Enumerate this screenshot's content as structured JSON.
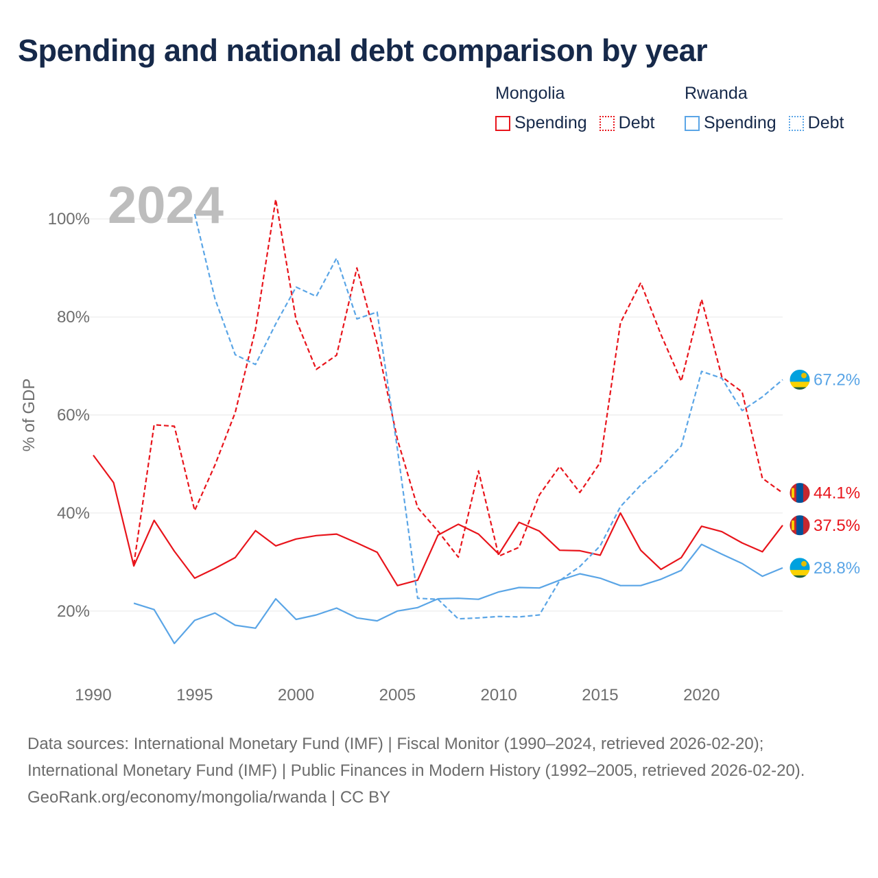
{
  "title": "Spending and national debt comparison by year",
  "year_watermark": "2024",
  "legend": {
    "mongolia": {
      "country": "Mongolia",
      "spending": "Spending",
      "debt": "Debt"
    },
    "rwanda": {
      "country": "Rwanda",
      "spending": "Spending",
      "debt": "Debt"
    }
  },
  "colors": {
    "mongolia": "#e8141b",
    "rwanda": "#5aa5e6",
    "grid": "#e6e6e6",
    "axis_text": "#6e6e6e"
  },
  "footer": {
    "sources": "Data sources: International Monetary Fund (IMF) | Fiscal Monitor (1990–2024, retrieved 2026-02-20); International Monetary Fund (IMF) | Public Finances in Modern History (1992–2005, retrieved 2026-02-20).",
    "credit": "GeoRank.org/economy/mongolia/rwanda | CC BY"
  },
  "chart_data": {
    "type": "line",
    "title": "Spending and national debt comparison by year",
    "xlabel": "",
    "ylabel": "% of GDP",
    "xlim": [
      1990,
      2024
    ],
    "ylim": [
      5,
      108
    ],
    "x_ticks": [
      1990,
      1995,
      2000,
      2005,
      2010,
      2015,
      2020
    ],
    "y_ticks": [
      20,
      40,
      60,
      80,
      100
    ],
    "y_tick_labels": [
      "20%",
      "40%",
      "60%",
      "80%",
      "100%"
    ],
    "series": [
      {
        "name": "Mongolia Spending",
        "country": "mongolia",
        "style": "solid",
        "x": [
          1990,
          1991,
          1992,
          1993,
          1994,
          1995,
          1996,
          1997,
          1998,
          1999,
          2000,
          2001,
          2002,
          2003,
          2004,
          2005,
          2006,
          2007,
          2008,
          2009,
          2010,
          2011,
          2012,
          2013,
          2014,
          2015,
          2016,
          2017,
          2018,
          2019,
          2020,
          2021,
          2022,
          2023,
          2024
        ],
        "values": [
          51.8,
          46.2,
          29.2,
          38.5,
          32.2,
          26.7,
          28.7,
          30.9,
          36.4,
          33.3,
          34.7,
          35.4,
          35.7,
          33.9,
          32.0,
          25.2,
          26.3,
          35.5,
          37.7,
          35.7,
          31.6,
          38.1,
          36.3,
          32.4,
          32.3,
          31.4,
          40.0,
          32.4,
          28.5,
          30.9,
          37.3,
          36.2,
          33.9,
          32.1,
          37.5
        ],
        "end_label": "37.5%"
      },
      {
        "name": "Mongolia Debt",
        "country": "mongolia",
        "style": "dashed",
        "x": [
          1992,
          1993,
          1994,
          1995,
          1996,
          1997,
          1998,
          1999,
          2000,
          2001,
          2002,
          2003,
          2004,
          2005,
          2006,
          2007,
          2008,
          2009,
          2010,
          2011,
          2012,
          2013,
          2014,
          2015,
          2016,
          2017,
          2018,
          2019,
          2020,
          2021,
          2022,
          2023,
          2024
        ],
        "values": [
          29.5,
          58.0,
          57.7,
          40.5,
          49.8,
          60.5,
          77.5,
          104.0,
          79.4,
          69.3,
          72.2,
          90.0,
          74.5,
          55.0,
          41.1,
          36.3,
          31.0,
          48.6,
          31.2,
          33.0,
          43.7,
          49.5,
          44.2,
          50.3,
          78.8,
          87.0,
          76.4,
          66.9,
          83.6,
          67.8,
          64.7,
          47.1,
          44.1
        ],
        "end_label": "44.1%"
      },
      {
        "name": "Rwanda Spending",
        "country": "rwanda",
        "style": "solid",
        "x": [
          1992,
          1993,
          1994,
          1995,
          1996,
          1997,
          1998,
          1999,
          2000,
          2001,
          2002,
          2003,
          2004,
          2005,
          2006,
          2007,
          2008,
          2009,
          2010,
          2011,
          2012,
          2013,
          2014,
          2015,
          2016,
          2017,
          2018,
          2019,
          2020,
          2021,
          2022,
          2023,
          2024
        ],
        "values": [
          21.6,
          20.3,
          13.4,
          18.1,
          19.6,
          17.1,
          16.5,
          22.5,
          18.3,
          19.2,
          20.6,
          18.6,
          18.0,
          20.0,
          20.7,
          22.5,
          22.6,
          22.4,
          23.9,
          24.8,
          24.7,
          26.3,
          27.6,
          26.7,
          25.2,
          25.2,
          26.5,
          28.3,
          33.6,
          31.6,
          29.7,
          27.1,
          28.8
        ],
        "end_label": "28.8%"
      },
      {
        "name": "Rwanda Debt",
        "country": "rwanda",
        "style": "dashed",
        "x": [
          1995,
          1996,
          1997,
          1998,
          1999,
          2000,
          2001,
          2002,
          2003,
          2004,
          2005,
          2006,
          2007,
          2008,
          2009,
          2010,
          2011,
          2012,
          2013,
          2014,
          2015,
          2016,
          2017,
          2018,
          2019,
          2020,
          2021,
          2022,
          2023,
          2024
        ],
        "values": [
          101.0,
          83.7,
          72.3,
          70.3,
          78.6,
          86.1,
          84.2,
          92.0,
          79.6,
          81.0,
          53.0,
          22.6,
          22.4,
          18.4,
          18.6,
          18.9,
          18.8,
          19.2,
          26.2,
          29.1,
          33.3,
          41.3,
          45.7,
          49.3,
          53.7,
          68.9,
          67.5,
          60.9,
          63.7,
          67.2
        ],
        "end_label": "67.2%"
      }
    ]
  }
}
